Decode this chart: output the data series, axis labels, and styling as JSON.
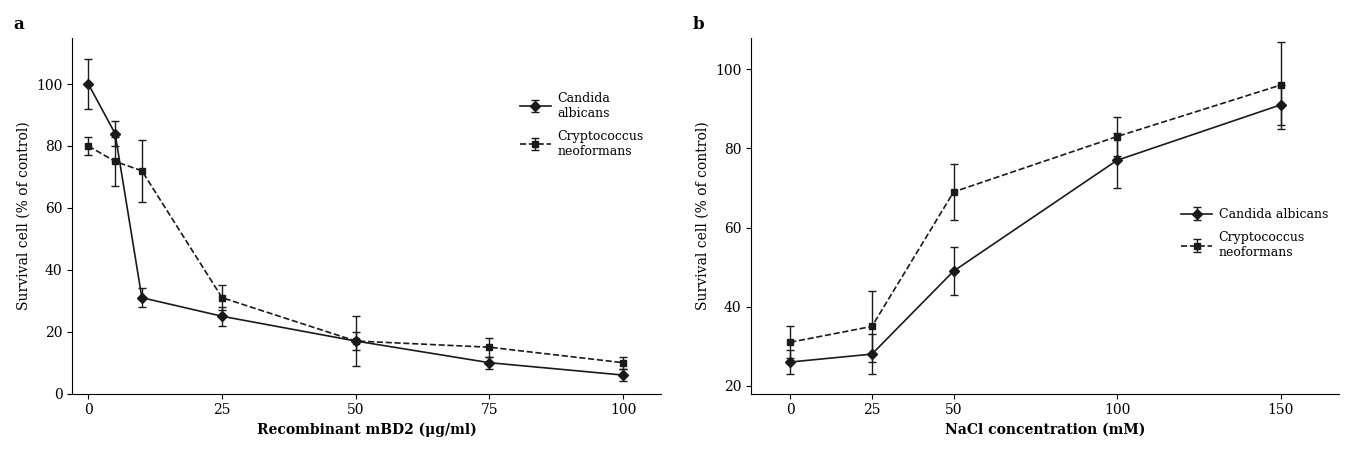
{
  "panel_a": {
    "title": "a",
    "xlabel": "Recombinant mBD2 (μg/ml)",
    "ylabel": "Survival cell (% of control)",
    "candida_x": [
      0,
      5,
      10,
      25,
      50,
      75,
      100
    ],
    "candida_y": [
      100,
      84,
      31,
      25,
      17,
      10,
      6
    ],
    "candida_err": [
      8,
      4,
      3,
      3,
      8,
      2,
      2
    ],
    "crypto_x": [
      0,
      5,
      10,
      25,
      50,
      75,
      100
    ],
    "crypto_y": [
      80,
      75,
      72,
      31,
      17,
      15,
      10
    ],
    "crypto_err": [
      3,
      8,
      10,
      4,
      3,
      3,
      2
    ],
    "xlim": [
      -3,
      107
    ],
    "ylim": [
      0,
      115
    ],
    "xticks": [
      0,
      25,
      50,
      75,
      100
    ],
    "yticks": [
      0,
      20,
      40,
      60,
      80,
      100
    ]
  },
  "panel_b": {
    "title": "b",
    "xlabel": "NaCl concentration (mM)",
    "ylabel": "Survival cell (% of control)",
    "candida_x": [
      0,
      25,
      50,
      100,
      150
    ],
    "candida_y": [
      26,
      28,
      49,
      77,
      91
    ],
    "candida_err": [
      3,
      5,
      6,
      7,
      5
    ],
    "crypto_x": [
      0,
      25,
      50,
      100,
      150
    ],
    "crypto_y": [
      31,
      35,
      69,
      83,
      96
    ],
    "crypto_err": [
      4,
      9,
      7,
      5,
      11
    ],
    "xlim": [
      -12,
      168
    ],
    "ylim": [
      18,
      108
    ],
    "xticks": [
      0,
      25,
      50,
      100,
      150
    ],
    "yticks": [
      20,
      40,
      60,
      80,
      100
    ]
  },
  "legend_candida_a": "Candida\nalbicans",
  "legend_crypto_a": "Cryptococcus\nneoformans",
  "legend_candida_b": "Candida albicans",
  "legend_crypto_b": "Cryptococcus\nneoformans",
  "line_color": "#1a1a1a",
  "bg_color": "#ffffff",
  "font_size": 10,
  "label_font_size": 10,
  "title_font_size": 12
}
